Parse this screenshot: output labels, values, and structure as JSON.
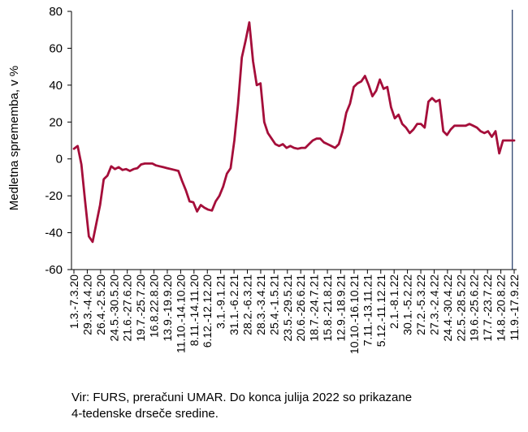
{
  "chart_data": {
    "type": "line",
    "ylabel": "Medletna sprememba, v %",
    "ylim": [
      -60,
      80
    ],
    "yticks": [
      -60,
      -40,
      -20,
      0,
      20,
      40,
      60,
      80
    ],
    "grid": false,
    "line_color": "#a50e3a",
    "marker_line_color": "#1f3864",
    "marker_after_index": 117,
    "x_labels": [
      "1.3.-7.3.20",
      "29.3.-4.4.20",
      "26.4.-2.5.20",
      "24.5.-30.5.20",
      "21.6.-27.6.20",
      "19.7.-25.7.20",
      "16.8.22.8.20",
      "13.9.-19.9.20",
      "11.10.-14.10.20",
      "8.11.-14.11.20",
      "6.12.-12.12.20",
      "3.1.-9.1.21",
      "31.1.-6.2.21",
      "28.2.-6.3.21",
      "28.3.-3.4.21",
      "25.4.-1.5.21",
      "23.5.-29.5.21",
      "20.6.-26.6.21",
      "18.7.-24.7.21",
      "15.8.-21.8.21",
      "12.9.-18.9.21",
      "10.10.-16.10.21",
      "7.11.-13.11.21",
      "5.12.-11.12.21",
      "2.1.-8.1.22",
      "30.1.-5.2.22",
      "27.2.-5.3.22",
      "27.3.-2.4.22",
      "24.4.-30.4.22",
      "22.5.-28.5.22",
      "19.6.-25.6.22",
      "17.7.-23.7.22",
      "14.8.-20.8.22",
      "11.9.-17.9.22"
    ],
    "values": [
      5.5,
      7,
      -3,
      -23,
      -42,
      -45,
      -35,
      -25,
      -11,
      -9,
      -4,
      -5.5,
      -4.5,
      -6,
      -5.5,
      -6.5,
      -5.5,
      -5,
      -3,
      -2.5,
      -2.5,
      -2.5,
      -3.5,
      -4,
      -4.5,
      -5,
      -5.5,
      -6,
      -6.5,
      -12,
      -17,
      -23,
      -23.5,
      -28.5,
      -25,
      -26.5,
      -27.5,
      -28,
      -23,
      -20,
      -15,
      -8,
      -5,
      10,
      30,
      55,
      64,
      74,
      53,
      40,
      41,
      20,
      14,
      11,
      8,
      7,
      8,
      6,
      7,
      6,
      5.5,
      6,
      6,
      8,
      10,
      11,
      11,
      9,
      8,
      7,
      6,
      8,
      15,
      25,
      30,
      39,
      41,
      42,
      45,
      40,
      34,
      37,
      43,
      38,
      39,
      28,
      22,
      24,
      19,
      17,
      14,
      16,
      19,
      19,
      17,
      31,
      33,
      31,
      32,
      15,
      13,
      16,
      18,
      18,
      18,
      18,
      19,
      18,
      17,
      15,
      14,
      15,
      12,
      15,
      3,
      10,
      10,
      10,
      10
    ]
  },
  "note": {
    "line1": "Vir: FURS, preračuni UMAR. Do konca julija 2022 so prikazane",
    "line2": "4-tedenske drseče sredine."
  }
}
